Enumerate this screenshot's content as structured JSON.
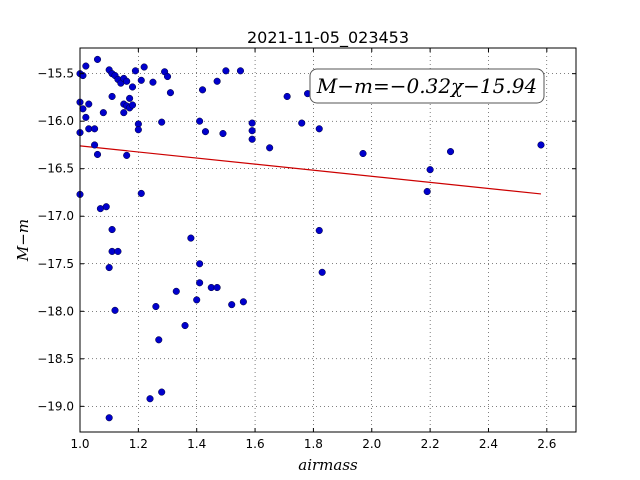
{
  "chart_data": {
    "type": "scatter",
    "title": "2021-11-05_023453",
    "xlabel": "airmass",
    "ylabel": "M−m",
    "xlim": [
      1.0,
      2.7
    ],
    "ylim": [
      -19.27,
      -15.23
    ],
    "xticks": [
      1.0,
      1.2,
      1.4,
      1.6,
      1.8,
      2.0,
      2.2,
      2.4,
      2.6
    ],
    "xtick_labels": [
      "1.0",
      "1.2",
      "1.4",
      "1.6",
      "1.8",
      "2.0",
      "2.2",
      "2.4",
      "2.6"
    ],
    "yticks": [
      -15.5,
      -16.0,
      -16.5,
      -17.0,
      -17.5,
      -18.0,
      -18.5,
      -19.0
    ],
    "ytick_labels": [
      "−15.5",
      "−16.0",
      "−16.5",
      "−17.0",
      "−17.5",
      "−18.0",
      "−18.5",
      "−19.0"
    ],
    "grid": true,
    "annotation": "M−m=−0.32χ−15.94",
    "marker_color": "#0000cc",
    "fit_color": "#cc0000",
    "fit": {
      "slope": -0.32,
      "intercept": -15.94,
      "x_range": [
        1.0,
        2.58
      ]
    },
    "points": [
      {
        "x": 1.0,
        "y": -15.5
      },
      {
        "x": 1.01,
        "y": -15.52
      },
      {
        "x": 1.02,
        "y": -15.42
      },
      {
        "x": 1.0,
        "y": -15.8
      },
      {
        "x": 1.01,
        "y": -15.87
      },
      {
        "x": 1.02,
        "y": -15.96
      },
      {
        "x": 1.03,
        "y": -15.82
      },
      {
        "x": 1.0,
        "y": -16.12
      },
      {
        "x": 1.03,
        "y": -16.08
      },
      {
        "x": 1.05,
        "y": -16.08
      },
      {
        "x": 1.05,
        "y": -16.25
      },
      {
        "x": 1.06,
        "y": -16.35
      },
      {
        "x": 1.06,
        "y": -15.35
      },
      {
        "x": 1.0,
        "y": -16.77
      },
      {
        "x": 1.08,
        "y": -15.91
      },
      {
        "x": 1.1,
        "y": -15.46
      },
      {
        "x": 1.11,
        "y": -15.5
      },
      {
        "x": 1.12,
        "y": -15.52
      },
      {
        "x": 1.13,
        "y": -15.56
      },
      {
        "x": 1.14,
        "y": -15.6
      },
      {
        "x": 1.15,
        "y": -15.55
      },
      {
        "x": 1.16,
        "y": -15.58
      },
      {
        "x": 1.11,
        "y": -15.74
      },
      {
        "x": 1.15,
        "y": -15.82
      },
      {
        "x": 1.16,
        "y": -15.84
      },
      {
        "x": 1.17,
        "y": -15.76
      },
      {
        "x": 1.17,
        "y": -15.86
      },
      {
        "x": 1.18,
        "y": -15.83
      },
      {
        "x": 1.18,
        "y": -15.64
      },
      {
        "x": 1.15,
        "y": -15.91
      },
      {
        "x": 1.19,
        "y": -15.47
      },
      {
        "x": 1.2,
        "y": -16.03
      },
      {
        "x": 1.2,
        "y": -16.09
      },
      {
        "x": 1.16,
        "y": -16.36
      },
      {
        "x": 1.22,
        "y": -15.43
      },
      {
        "x": 1.21,
        "y": -15.57
      },
      {
        "x": 1.25,
        "y": -15.59
      },
      {
        "x": 1.29,
        "y": -15.48
      },
      {
        "x": 1.3,
        "y": -15.53
      },
      {
        "x": 1.31,
        "y": -15.7
      },
      {
        "x": 1.28,
        "y": -16.01
      },
      {
        "x": 1.21,
        "y": -16.76
      },
      {
        "x": 1.07,
        "y": -16.92
      },
      {
        "x": 1.09,
        "y": -16.9
      },
      {
        "x": 1.11,
        "y": -17.14
      },
      {
        "x": 1.11,
        "y": -17.37
      },
      {
        "x": 1.13,
        "y": -17.37
      },
      {
        "x": 1.1,
        "y": -17.54
      },
      {
        "x": 1.12,
        "y": -17.99
      },
      {
        "x": 1.1,
        "y": -19.12
      },
      {
        "x": 1.24,
        "y": -18.92
      },
      {
        "x": 1.28,
        "y": -18.85
      },
      {
        "x": 1.27,
        "y": -18.3
      },
      {
        "x": 1.26,
        "y": -17.95
      },
      {
        "x": 1.33,
        "y": -17.79
      },
      {
        "x": 1.36,
        "y": -18.15
      },
      {
        "x": 1.38,
        "y": -17.23
      },
      {
        "x": 1.4,
        "y": -17.88
      },
      {
        "x": 1.41,
        "y": -17.5
      },
      {
        "x": 1.41,
        "y": -17.7
      },
      {
        "x": 1.45,
        "y": -17.75
      },
      {
        "x": 1.47,
        "y": -17.75
      },
      {
        "x": 1.52,
        "y": -17.93
      },
      {
        "x": 1.56,
        "y": -17.9
      },
      {
        "x": 1.41,
        "y": -16.0
      },
      {
        "x": 1.43,
        "y": -16.11
      },
      {
        "x": 1.42,
        "y": -15.67
      },
      {
        "x": 1.47,
        "y": -15.58
      },
      {
        "x": 1.5,
        "y": -15.47
      },
      {
        "x": 1.49,
        "y": -16.13
      },
      {
        "x": 1.55,
        "y": -15.47
      },
      {
        "x": 1.59,
        "y": -16.02
      },
      {
        "x": 1.59,
        "y": -16.1
      },
      {
        "x": 1.59,
        "y": -16.19
      },
      {
        "x": 1.65,
        "y": -16.28
      },
      {
        "x": 1.71,
        "y": -15.74
      },
      {
        "x": 1.76,
        "y": -16.02
      },
      {
        "x": 1.78,
        "y": -15.71
      },
      {
        "x": 1.82,
        "y": -16.08
      },
      {
        "x": 1.82,
        "y": -17.15
      },
      {
        "x": 1.83,
        "y": -17.59
      },
      {
        "x": 1.97,
        "y": -16.34
      },
      {
        "x": 2.2,
        "y": -16.51
      },
      {
        "x": 2.19,
        "y": -16.74
      },
      {
        "x": 2.27,
        "y": -16.32
      },
      {
        "x": 2.58,
        "y": -16.25
      }
    ]
  }
}
